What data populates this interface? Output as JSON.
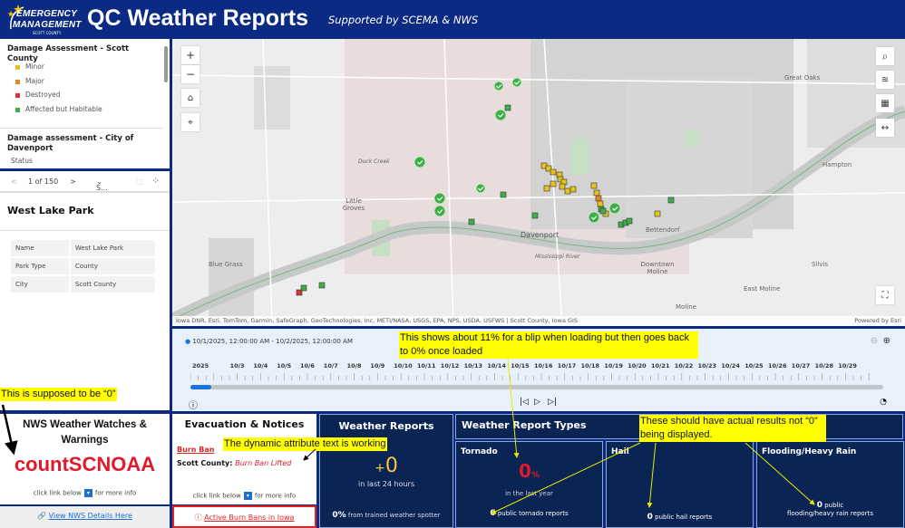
{
  "header": {
    "logo_line1": "EMERGENCY",
    "logo_line2": "MANAGEMENT",
    "logo_line3": "SCOTT COUNTY",
    "title": "QC Weather Reports",
    "tagline": "Supported by SCEMA & NWS"
  },
  "legend": {
    "group1_title": "Damage Assessment - Scott County",
    "items": [
      {
        "label": "Minor",
        "color": "#e6c21f"
      },
      {
        "label": "Major",
        "color": "#e8852a"
      },
      {
        "label": "Destroyed",
        "color": "#d9323a"
      },
      {
        "label": "Affected but Habitable",
        "color": "#3fae49"
      }
    ],
    "group2_title": "Damage assessment - City of Davenport",
    "group2_sub": "Status"
  },
  "feature": {
    "pager": "1 of 150",
    "prev": "<",
    "next": ">",
    "select": "S...",
    "title": "West Lake Park",
    "attributes": [
      {
        "name": "Name",
        "value": "West Lake Park"
      },
      {
        "name": "Park Type",
        "value": "County"
      },
      {
        "name": "City",
        "value": "Scott County"
      }
    ]
  },
  "map": {
    "labels": [
      "Great Oaks",
      "Hampton",
      "Davenport",
      "Bettendorf",
      "Little Groves",
      "Blue Grass",
      "Downtown Moline",
      "Silvis",
      "East Moline",
      "Moline",
      "Mississippi River",
      "Duck Creek"
    ],
    "attribution": "Iowa DNR, Esri, TomTom, Garmin, SafeGraph, GeoTechnologies, Inc, METI/NASA, USGS, EPA, NPS, USDA, USFWS | Scott County, Iowa GIS",
    "powered": "Powered by Esri"
  },
  "timeline": {
    "range": "10/1/2025, 12:00:00 AM - 10/2/2025, 12:00:00 AM",
    "ticks": [
      "2025",
      "",
      "10/3",
      "10/4",
      "10/5",
      "10/6",
      "10/7",
      "10/8",
      "10/9",
      "10/10",
      "10/11",
      "10/12",
      "10/13",
      "10/14",
      "10/15",
      "10/16",
      "10/17",
      "10/18",
      "10/19",
      "10/20",
      "10/21",
      "10/22",
      "10/23",
      "10/24",
      "10/25",
      "10/26",
      "10/27",
      "10/28",
      "10/29"
    ],
    "progress_percent": 3
  },
  "nws": {
    "title": "NWS Weather Watches & Warnings",
    "count": "countSCNOAA",
    "hint_pre": "click link below",
    "hint_post": "for more info",
    "link": "View NWS Details Here"
  },
  "evac": {
    "title": "Evacuation & Notices",
    "burn_ban": "Burn Ban",
    "county_label": "Scott County:",
    "status": "Burn Ban Lifted",
    "hint_pre": "click link below",
    "hint_post": "for more info",
    "link": "Active Burn Bans in Iowa"
  },
  "weather_reports": {
    "title": "Weather Reports",
    "value": "0",
    "prefix": "+",
    "sub": "in last 24 hours",
    "spotter_pct": "0%",
    "spotter_text": "from trained weather spotter"
  },
  "report_types": {
    "title": "Weather Report Types",
    "tornado": {
      "title": "Tornado",
      "value": "0",
      "unit": "%",
      "sub": "in the last year",
      "count": "0",
      "count_text": "public tornado reports"
    },
    "hail": {
      "title": "Hail",
      "count": "0",
      "count_text": "public hail reports"
    },
    "flood": {
      "title": "Flooding/Heavy Rain",
      "count": "0",
      "count_text1": "public",
      "count_text2": "flooding/heavy rain reports"
    }
  },
  "annotations": {
    "nws": "This is supposed to be “0”",
    "timeline": "This shows about 11% for a blip when loading but then goes back to 0% once loaded",
    "evac": "The dynamic attribute text is working",
    "types": "These should have actual results not “0” being displayed."
  },
  "colors": {
    "header": "#0b2a84",
    "navy": "#0a2454",
    "accent_red": "#e0192c",
    "highlight": "#ffff00"
  }
}
